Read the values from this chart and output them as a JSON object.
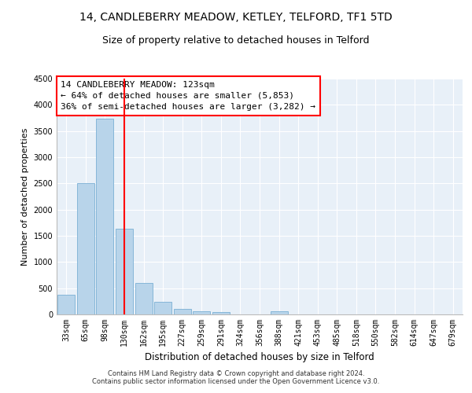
{
  "title1": "14, CANDLEBERRY MEADOW, KETLEY, TELFORD, TF1 5TD",
  "title2": "Size of property relative to detached houses in Telford",
  "xlabel": "Distribution of detached houses by size in Telford",
  "ylabel": "Number of detached properties",
  "categories": [
    "33sqm",
    "65sqm",
    "98sqm",
    "130sqm",
    "162sqm",
    "195sqm",
    "227sqm",
    "259sqm",
    "291sqm",
    "324sqm",
    "356sqm",
    "388sqm",
    "421sqm",
    "453sqm",
    "485sqm",
    "518sqm",
    "550sqm",
    "582sqm",
    "614sqm",
    "647sqm",
    "679sqm"
  ],
  "values": [
    380,
    2510,
    3740,
    1640,
    600,
    240,
    105,
    60,
    45,
    0,
    0,
    60,
    0,
    0,
    0,
    0,
    0,
    0,
    0,
    0,
    0
  ],
  "bar_color": "#b8d4ea",
  "bar_edge_color": "#7aafd4",
  "vline_color": "red",
  "vline_x_index": 3,
  "annotation_text": "14 CANDLEBERRY MEADOW: 123sqm\n← 64% of detached houses are smaller (5,853)\n36% of semi-detached houses are larger (3,282) →",
  "annotation_box_color": "white",
  "annotation_box_edge_color": "red",
  "ylim": [
    0,
    4500
  ],
  "yticks": [
    0,
    500,
    1000,
    1500,
    2000,
    2500,
    3000,
    3500,
    4000,
    4500
  ],
  "bg_color": "#e8f0f8",
  "footnote": "Contains HM Land Registry data © Crown copyright and database right 2024.\nContains public sector information licensed under the Open Government Licence v3.0.",
  "title1_fontsize": 10,
  "title2_fontsize": 9,
  "xlabel_fontsize": 8.5,
  "ylabel_fontsize": 8,
  "tick_fontsize": 7,
  "annotation_fontsize": 8,
  "footnote_fontsize": 6
}
